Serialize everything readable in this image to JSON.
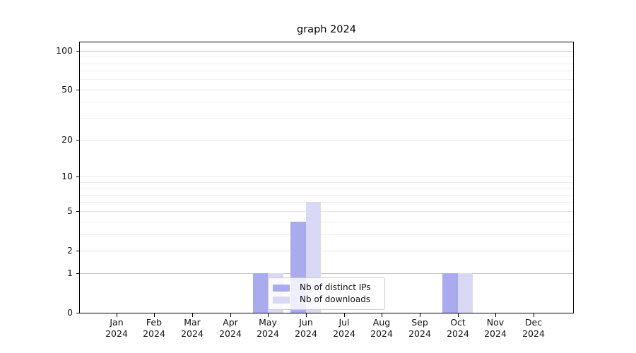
{
  "title": "graph 2024",
  "chart_data": {
    "type": "bar",
    "title": "graph 2024",
    "categories": [
      "Jan 2024",
      "Feb 2024",
      "Mar 2024",
      "Apr 2024",
      "May 2024",
      "Jun 2024",
      "Jul 2024",
      "Aug 2024",
      "Sep 2024",
      "Oct 2024",
      "Nov 2024",
      "Dec 2024"
    ],
    "series": [
      {
        "name": "Nb of distinct IPs",
        "values": [
          0,
          0,
          0,
          0,
          1,
          4,
          0,
          0,
          0,
          1,
          0,
          0
        ],
        "color": "#aaaaee"
      },
      {
        "name": "Nb of downloads",
        "values": [
          0,
          0,
          0,
          0,
          1,
          6,
          0,
          0,
          0,
          1,
          0,
          0
        ],
        "color": "#d9d9f6"
      }
    ],
    "xlabel": "",
    "ylabel": "",
    "y_scale": "log1p",
    "y_ticks": [
      0,
      1,
      2,
      5,
      10,
      20,
      50,
      100
    ],
    "y_minor_ticks": [
      3,
      4,
      6,
      7,
      8,
      9,
      30,
      40,
      60,
      70,
      80,
      90
    ],
    "ylim": [
      0,
      116
    ],
    "grid": true,
    "legend_position": "lower center"
  },
  "legend": {
    "items": [
      {
        "label": "Nb of distinct IPs"
      },
      {
        "label": "Nb of downloads"
      }
    ]
  },
  "colors": {
    "bar_ips": "#aaaaee",
    "bar_downloads": "#d9d9f6",
    "grid_major_strong": "#c3c3c3",
    "grid_major": "#e2e2e2",
    "grid_minor": "#efefef",
    "axis": "#000000",
    "text": "#111111",
    "legend_border": "#cccccc"
  }
}
